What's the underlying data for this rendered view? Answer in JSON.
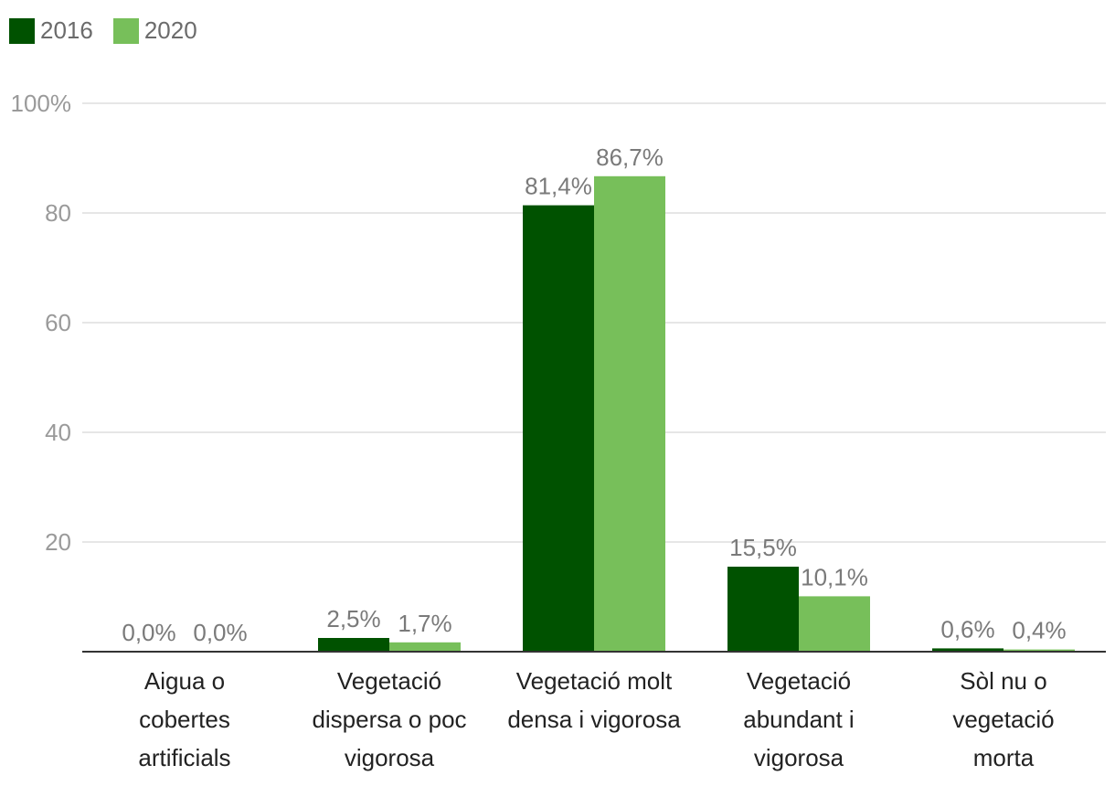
{
  "colors": {
    "s2016": "#005200",
    "s2020": "#77bf5a",
    "grid": "#dddddd",
    "axis": "#333333",
    "tick": "#9a9a9a",
    "label": "#7a7a7a"
  },
  "chart_data": {
    "type": "bar",
    "categories": [
      "Aigua o cobertes artificials",
      "Vegetació dispersa o poc vigorosa",
      "Vegetació molt densa i vigorosa",
      "Vegetació abundant i vigorosa",
      "Sòl nu o vegetació morta"
    ],
    "category_lines": [
      [
        "Aigua o",
        "cobertes",
        "artificials"
      ],
      [
        "Vegetació",
        "dispersa o poc",
        "vigorosa"
      ],
      [
        "Vegetació molt",
        "densa i vigorosa"
      ],
      [
        "Vegetació",
        "abundant i",
        "vigorosa"
      ],
      [
        "Sòl nu o",
        "vegetació",
        "morta"
      ]
    ],
    "series": [
      {
        "name": "2016",
        "values": [
          0.0,
          2.5,
          81.4,
          15.5,
          0.6
        ],
        "labels": [
          "0,0%",
          "2,5%",
          "81,4%",
          "15,5%",
          "0,6%"
        ]
      },
      {
        "name": "2020",
        "values": [
          0.0,
          1.7,
          86.7,
          10.1,
          0.4
        ],
        "labels": [
          "0,0%",
          "1,7%",
          "86,7%",
          "10,1%",
          "0,4%"
        ]
      }
    ],
    "yticks": [
      "",
      "20",
      "40",
      "60",
      "80",
      "100%"
    ],
    "ytick_values": [
      0,
      20,
      40,
      60,
      80,
      100
    ],
    "ylim": [
      0,
      100
    ],
    "grid": true,
    "legend_position": "top-left"
  }
}
